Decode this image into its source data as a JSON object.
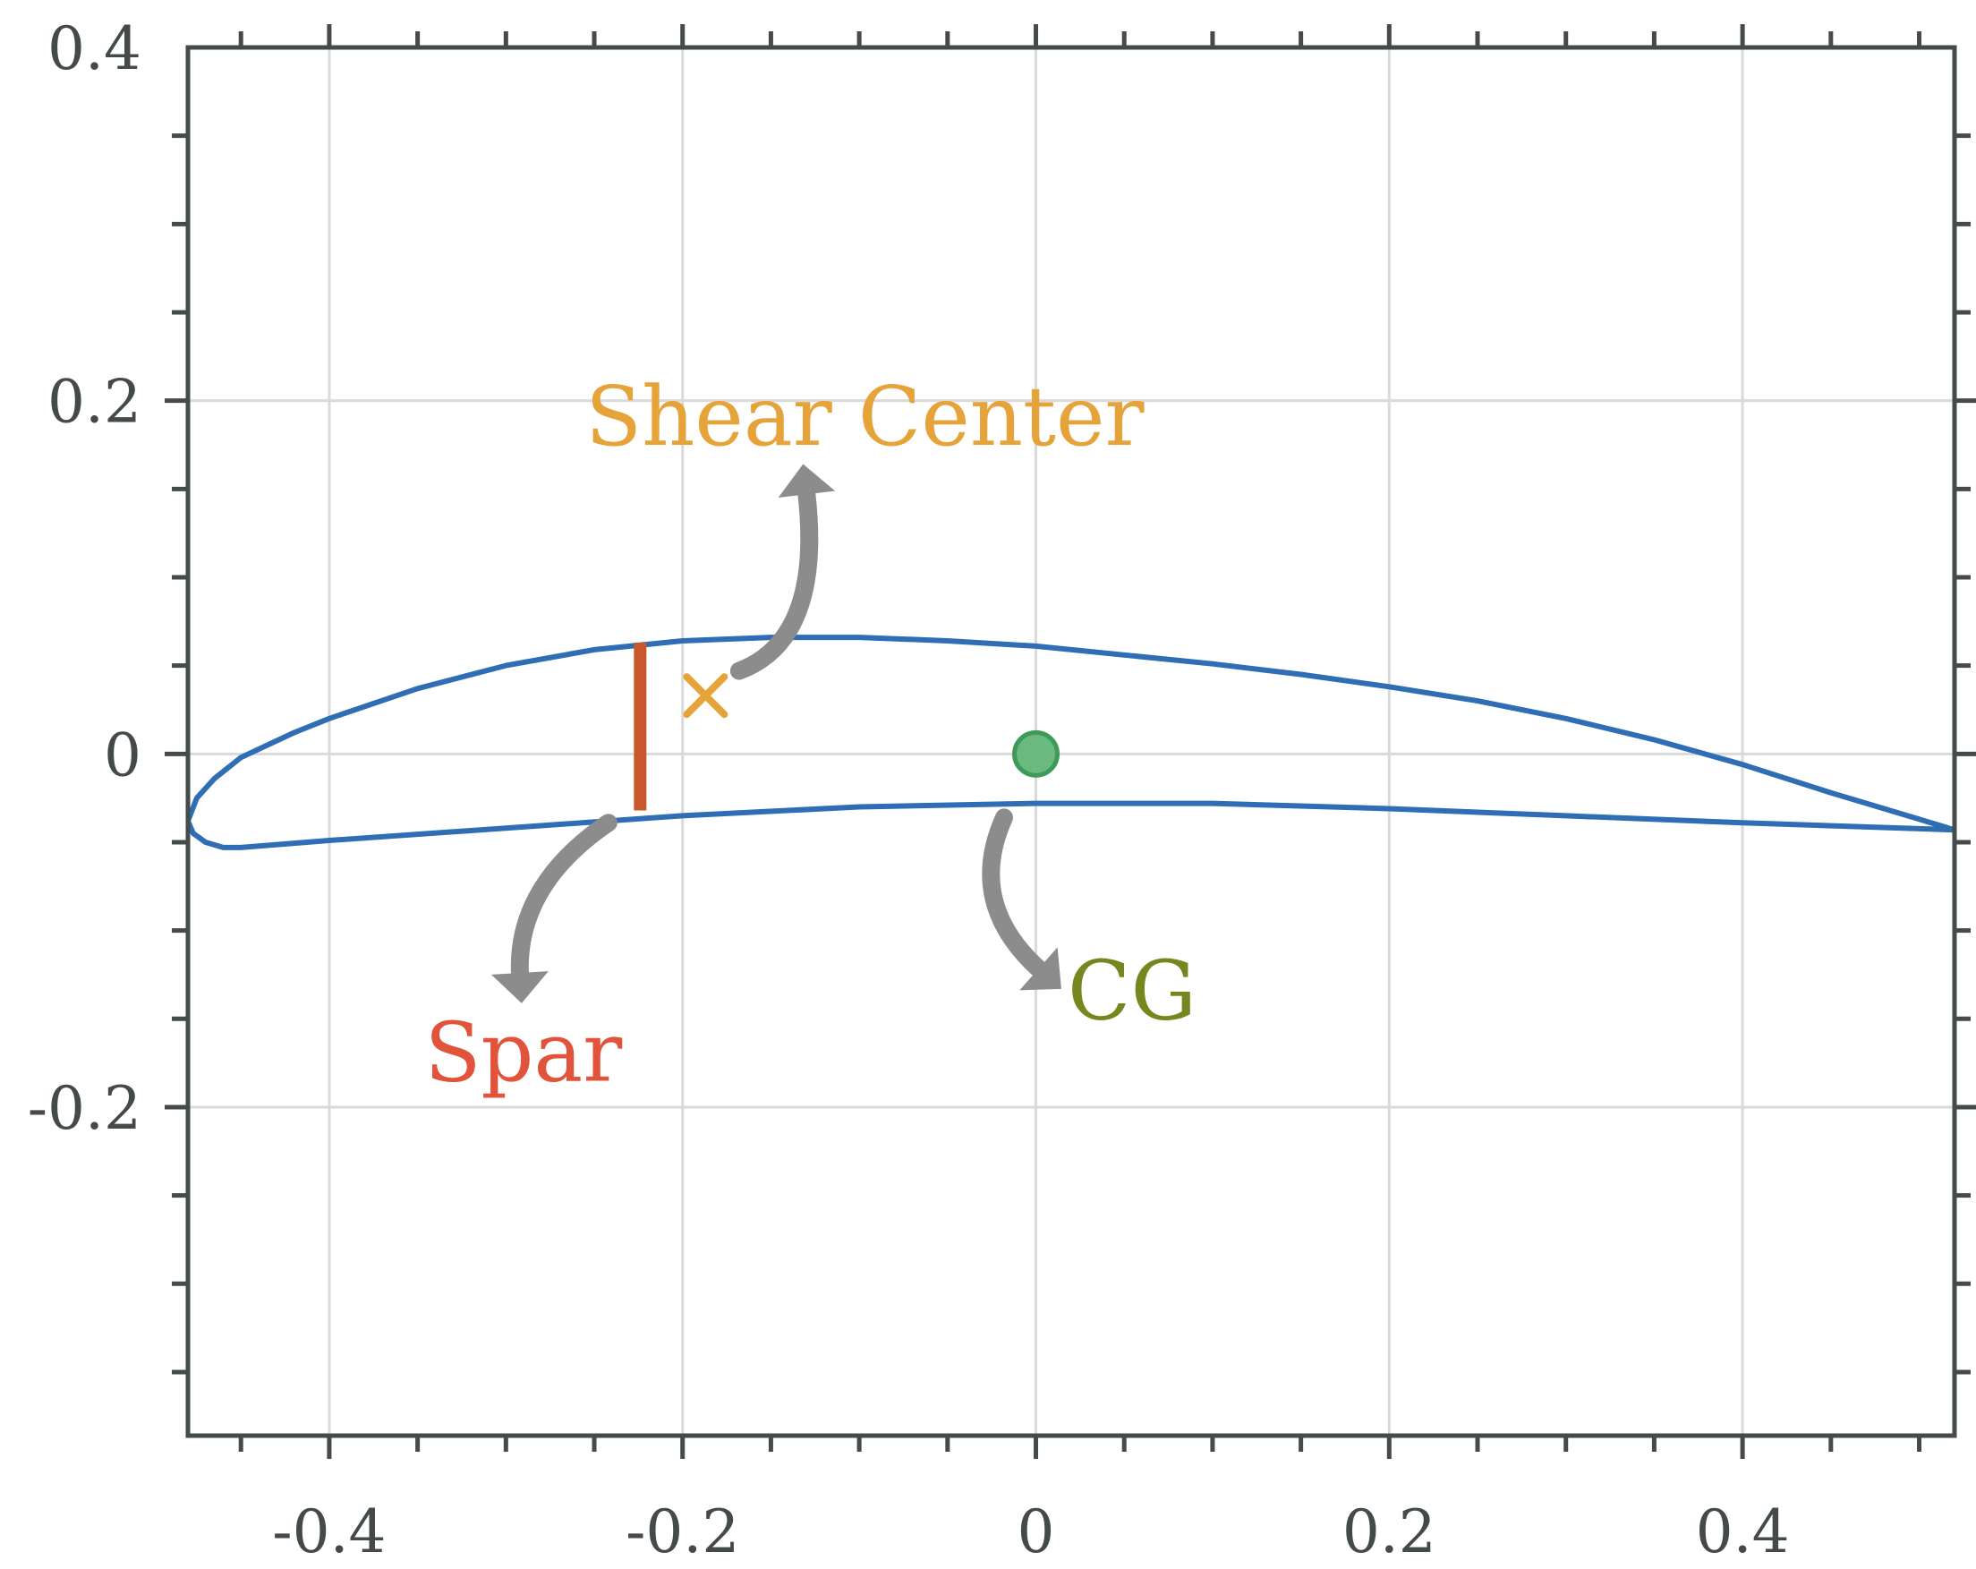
{
  "chart_data": {
    "type": "line",
    "title": "",
    "xlabel": "",
    "ylabel": "",
    "xlim": [
      -0.48,
      0.52
    ],
    "ylim": [
      -0.386,
      0.4
    ],
    "grid": true,
    "aspect": "equal",
    "xticks": [
      -0.4,
      -0.2,
      0,
      0.2,
      0.4
    ],
    "xtick_labels": [
      "-0.4",
      "-0.2",
      "0",
      "0.2",
      "0.4"
    ],
    "yticks": [
      0.4,
      0.2,
      0,
      -0.2
    ],
    "ytick_labels": [
      "0.4",
      "0.2",
      "0",
      "-0.2"
    ],
    "x_minor_step": 0.05,
    "y_minor_step": 0.05,
    "series": [
      {
        "kind": "airfoil-outline",
        "color": "#2f6db5",
        "upper": {
          "x": [
            0.52,
            0.5,
            0.45,
            0.4,
            0.35,
            0.3,
            0.25,
            0.2,
            0.15,
            0.1,
            0.05,
            0.0,
            -0.05,
            -0.1,
            -0.15,
            -0.2,
            -0.25,
            -0.3,
            -0.35,
            -0.4,
            -0.42,
            -0.45,
            -0.465,
            -0.475,
            -0.48
          ],
          "y": [
            -0.043,
            -0.037,
            -0.022,
            -0.006,
            0.008,
            0.02,
            0.03,
            0.038,
            0.045,
            0.051,
            0.056,
            0.061,
            0.064,
            0.066,
            0.066,
            0.064,
            0.059,
            0.05,
            0.037,
            0.02,
            0.012,
            -0.002,
            -0.014,
            -0.025,
            -0.038
          ]
        },
        "lower": {
          "x": [
            -0.48,
            -0.477,
            -0.47,
            -0.46,
            -0.45,
            -0.4,
            -0.3,
            -0.2,
            -0.1,
            0.0,
            0.1,
            0.2,
            0.3,
            0.4,
            0.52
          ],
          "y": [
            -0.038,
            -0.045,
            -0.05,
            -0.053,
            -0.053,
            -0.049,
            -0.042,
            -0.035,
            -0.03,
            -0.028,
            -0.028,
            -0.031,
            -0.035,
            -0.039,
            -0.043
          ]
        }
      }
    ],
    "spar": {
      "x": -0.224,
      "y_top": 0.063,
      "y_bottom": -0.032,
      "color": "#c8572b"
    },
    "shear_center": {
      "x": -0.187,
      "y": 0.033,
      "marker": "x",
      "color": "#e5a33a"
    },
    "cg": {
      "x": 0.0,
      "y": 0.0,
      "marker": "circle",
      "fill": "#6ab97f",
      "stroke": "#3f9a5a"
    },
    "annotations": [
      {
        "id": "shear-center",
        "text": "Shear Center",
        "color": "#e5a33a",
        "x": -0.255,
        "y": 0.175,
        "anchor": "start"
      },
      {
        "id": "spar",
        "text": "Spar",
        "color": "#e1533a",
        "x": -0.346,
        "y": -0.185,
        "anchor": "start"
      },
      {
        "id": "cg",
        "text": "CG",
        "color": "#77861f",
        "x": 0.018,
        "y": -0.15,
        "anchor": "start"
      }
    ],
    "arrows": [
      {
        "id": "shear-center-arrow",
        "color": "#8c8c8c",
        "from": [
          -0.168,
          0.047
        ],
        "ctrl": [
          -0.12,
          0.065
        ],
        "to": [
          -0.13,
          0.149
        ]
      },
      {
        "id": "spar-arrow",
        "color": "#8c8c8c",
        "from": [
          -0.242,
          -0.039
        ],
        "ctrl": [
          -0.295,
          -0.075
        ],
        "to": [
          -0.292,
          -0.126
        ]
      },
      {
        "id": "cg-arrow",
        "color": "#8c8c8c",
        "from": [
          -0.018,
          -0.036
        ],
        "ctrl": [
          -0.04,
          -0.085
        ],
        "to": [
          0.003,
          -0.123
        ]
      }
    ]
  }
}
